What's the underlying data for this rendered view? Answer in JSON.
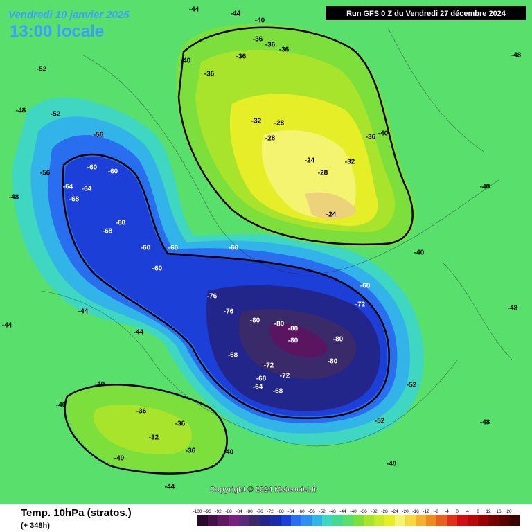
{
  "header": {
    "date": "Vendredi 10 janvier 2025",
    "time": "13:00 locale",
    "run": "Run GFS 0 Z du Vendredi 27 décembre 2024"
  },
  "legend": {
    "title": "Temp. 10hPa (stratos.)",
    "subtitle": "(+ 348h)",
    "scale": [
      -100,
      -96,
      -92,
      -88,
      -84,
      -80,
      -76,
      -72,
      -68,
      -64,
      -60,
      -56,
      -52,
      -48,
      -44,
      -40,
      -36,
      -32,
      -28,
      -24,
      -20,
      -16,
      -12,
      -8,
      -4,
      0,
      4,
      8,
      12,
      16,
      20
    ]
  },
  "copyright": "Copyright © 2024 Meteociel.fr",
  "contour_labels": [
    -44,
    -44,
    -40,
    -36,
    -36,
    -36,
    -36,
    -40,
    -36,
    -32,
    -28,
    -28,
    -24,
    -28,
    -32,
    -24,
    -36,
    -40,
    -52,
    -52,
    -56,
    -56,
    -60,
    -60,
    -64,
    -64,
    -68,
    -68,
    -68,
    -60,
    -60,
    -60,
    -60,
    -76,
    -76,
    -80,
    -80,
    -80,
    -80,
    -80,
    -80,
    -68,
    -72,
    -68,
    -72,
    -64,
    -68,
    -68,
    -72,
    -52,
    -52,
    -40,
    -40,
    -36,
    -32,
    -36,
    -36,
    -40,
    -40,
    -48,
    -48,
    -48,
    -48,
    -48,
    -48,
    -48,
    -44,
    -40,
    -44,
    -44,
    -44
  ]
}
